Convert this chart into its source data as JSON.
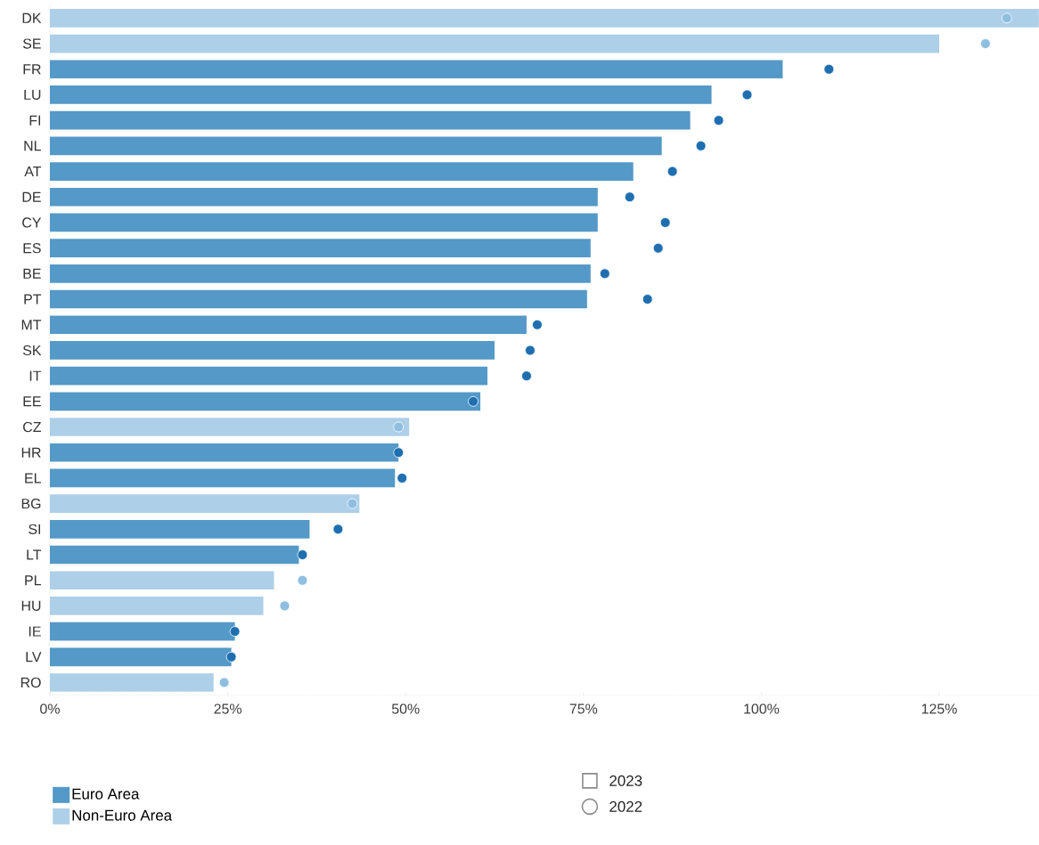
{
  "chart_data": {
    "type": "bar",
    "orientation": "horizontal",
    "categories": [
      "DK",
      "SE",
      "FR",
      "LU",
      "FI",
      "NL",
      "AT",
      "DE",
      "CY",
      "ES",
      "BE",
      "PT",
      "MT",
      "SK",
      "IT",
      "EE",
      "CZ",
      "HR",
      "EL",
      "BG",
      "SI",
      "LT",
      "PL",
      "HU",
      "IE",
      "LV",
      "RO"
    ],
    "series": [
      {
        "name": "Euro Area",
        "color": "#5499c7",
        "values": [
          null,
          null,
          103,
          93,
          90,
          86,
          82,
          77,
          77,
          76,
          76,
          75.5,
          67,
          62.5,
          61.5,
          60.5,
          null,
          49,
          48.5,
          null,
          36.5,
          35,
          null,
          null,
          26,
          25.5,
          null
        ]
      },
      {
        "name": "Non-Euro Area",
        "color": "#aecfe8",
        "values": [
          139,
          125,
          null,
          null,
          null,
          null,
          null,
          null,
          null,
          null,
          null,
          null,
          null,
          null,
          null,
          null,
          50.5,
          null,
          null,
          43.5,
          null,
          null,
          31.5,
          30,
          null,
          null,
          23
        ]
      },
      {
        "type": "scatter",
        "color": "#1f6fb0",
        "values": [
          null,
          null,
          109.5,
          98,
          94,
          91.5,
          87.5,
          81.5,
          86.5,
          85.5,
          78,
          84,
          68.5,
          67.5,
          67,
          59.5,
          null,
          49,
          49.5,
          null,
          40.5,
          35.5,
          null,
          null,
          26,
          25.5,
          null
        ]
      },
      {
        "type": "scatter",
        "color": "#8ebfe0",
        "values": [
          134.5,
          131.5,
          null,
          null,
          null,
          null,
          null,
          null,
          null,
          null,
          null,
          null,
          null,
          null,
          null,
          null,
          49,
          null,
          null,
          42.5,
          null,
          null,
          35.5,
          33,
          null,
          null,
          24.5
        ]
      }
    ],
    "xlim": [
      0,
      139
    ],
    "xticks": [
      {
        "value": 0,
        "label": "0%"
      },
      {
        "value": 25,
        "label": "25%"
      },
      {
        "value": 50,
        "label": "50%"
      },
      {
        "value": 75,
        "label": "75%"
      },
      {
        "value": 100,
        "label": "100%"
      },
      {
        "value": 125,
        "label": "125%"
      }
    ],
    "legend": "bottom left",
    "grid": false,
    "annotations": [
      "2023",
      "2022"
    ]
  }
}
